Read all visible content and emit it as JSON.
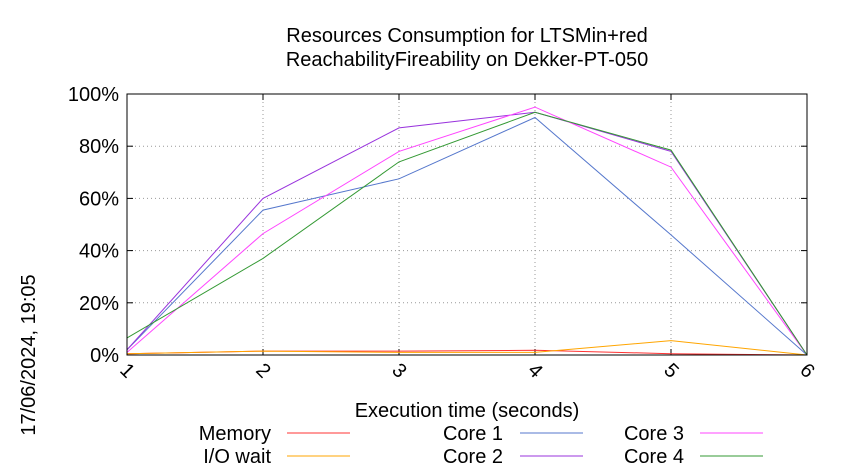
{
  "chart_data": {
    "type": "line",
    "title_lines": [
      "Resources Consumption for LTSMin+red",
      "ReachabilityFireability on Dekker-PT-050"
    ],
    "xlabel": "Execution time (seconds)",
    "ylabel": "",
    "timestamp": "17/06/2024, 19:05",
    "x": [
      1,
      2,
      3,
      4,
      5,
      6
    ],
    "xlim": [
      1,
      6
    ],
    "ylim": [
      0,
      100
    ],
    "x_ticks": [
      "1",
      "2",
      "3",
      "4",
      "5",
      "6"
    ],
    "y_ticks": [
      {
        "value": 0,
        "label": "0%"
      },
      {
        "value": 20,
        "label": "20%"
      },
      {
        "value": 40,
        "label": "40%"
      },
      {
        "value": 60,
        "label": "60%"
      },
      {
        "value": 80,
        "label": "80%"
      },
      {
        "value": 100,
        "label": "100%"
      }
    ],
    "grid": true,
    "legend_position": "bottom",
    "series": [
      {
        "name": "Memory",
        "color": "#ff3333",
        "values": [
          0.5,
          1.5,
          1.5,
          1.8,
          0.5,
          0
        ]
      },
      {
        "name": "I/O wait",
        "color": "#ffa500",
        "values": [
          0.5,
          1.5,
          1,
          1,
          5.5,
          0
        ]
      },
      {
        "name": "Core 1",
        "color": "#5577cc",
        "values": [
          2,
          55.5,
          67.5,
          91,
          46,
          0
        ]
      },
      {
        "name": "Core 2",
        "color": "#9933dd",
        "values": [
          2,
          60,
          87,
          93,
          78,
          0
        ]
      },
      {
        "name": "Core 3",
        "color": "#ff44ff",
        "values": [
          1,
          46.5,
          78,
          95,
          72,
          0
        ]
      },
      {
        "name": "Core 4",
        "color": "#339933",
        "values": [
          6.5,
          37,
          74,
          93,
          78.5,
          0
        ]
      }
    ]
  }
}
